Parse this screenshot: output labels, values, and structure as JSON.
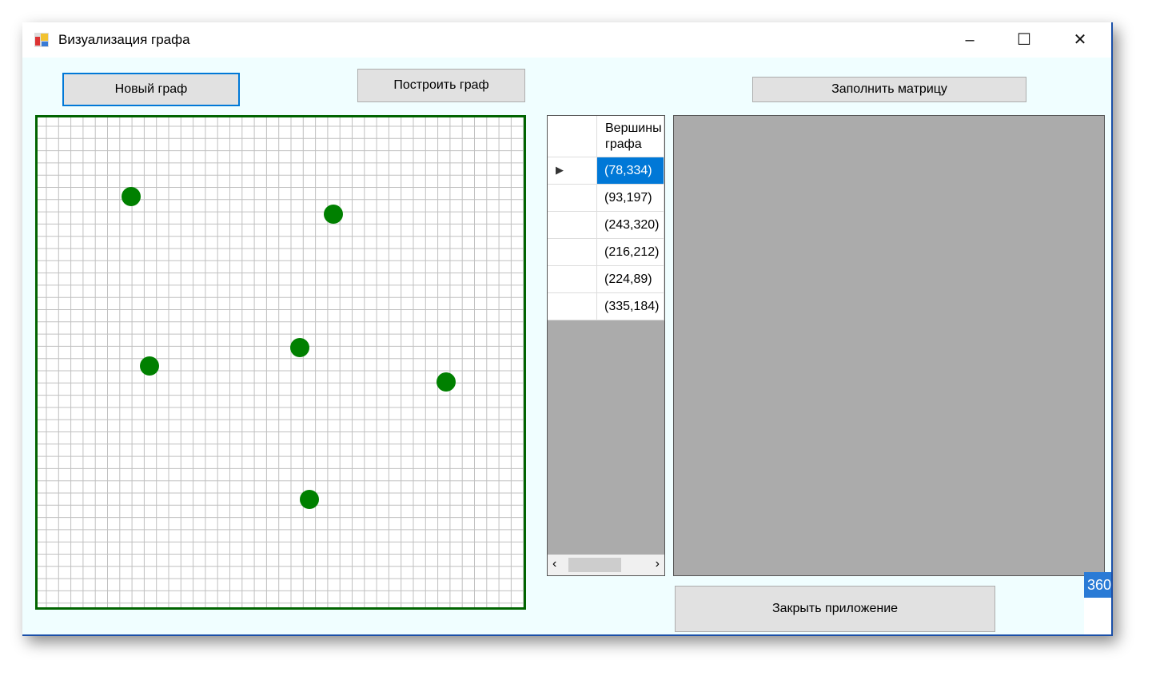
{
  "window": {
    "title": "Визуализация графа",
    "icon": "winforms-app-icon"
  },
  "toolbar": {
    "new_graph": "Новый граф",
    "build_graph": "Построить граф",
    "fill_matrix": "Заполнить матрицу",
    "close_app": "Закрыть приложение"
  },
  "vertices_table": {
    "header": "Вершины графа",
    "rows": [
      "(78,334)",
      "(93,197)",
      "(243,320)",
      "(216,212)",
      "(224,89)",
      "(335,184)"
    ],
    "selected_row": 0
  },
  "colors": {
    "vertex": "#008000",
    "canvas_border": "#006400",
    "selection": "#0078d7",
    "grid_line": "#c0c0c0"
  },
  "overlay_badge": "360"
}
